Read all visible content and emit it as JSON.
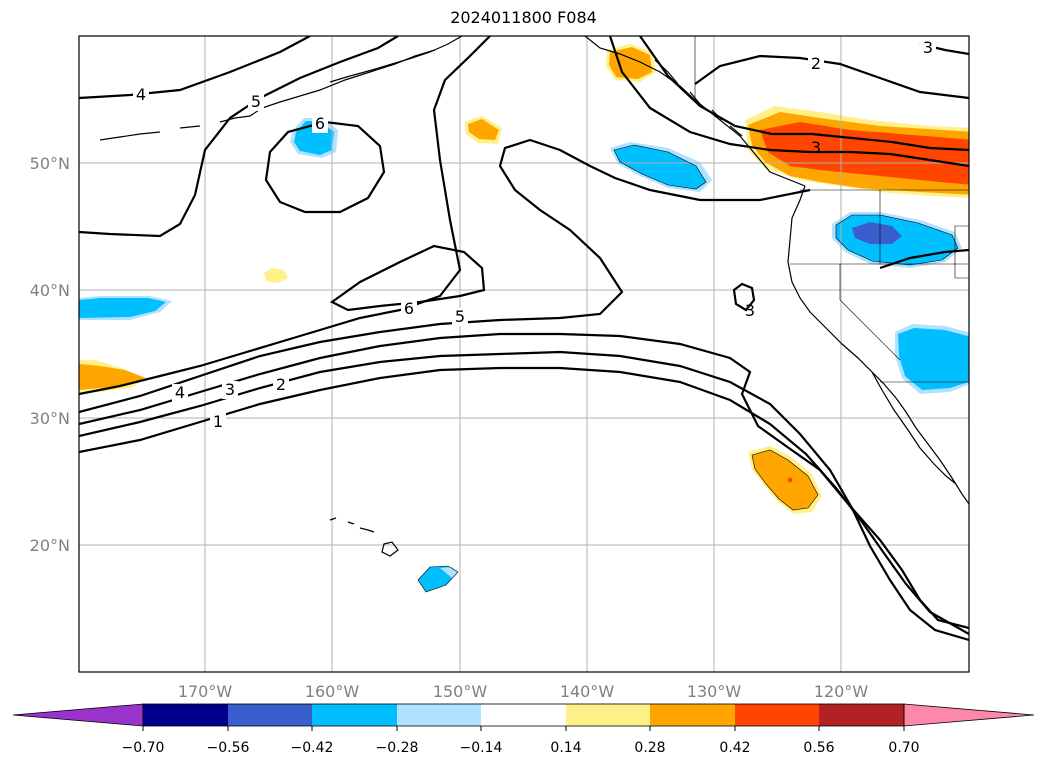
{
  "title": "2024011800 F084",
  "latitude_labels": [
    "50°N",
    "40°N",
    "30°N",
    "20°N"
  ],
  "longitude_labels": [
    "170°W",
    "160°W",
    "150°W",
    "140°W",
    "130°W",
    "120°W"
  ],
  "contour_labels": [
    "4",
    "5",
    "6",
    "6",
    "5",
    "4",
    "3",
    "2",
    "1",
    "2",
    "3",
    "3",
    "3"
  ],
  "colorbar": {
    "ticks": [
      "−0.70",
      "−0.56",
      "−0.42",
      "−0.28",
      "−0.14",
      "0.14",
      "0.28",
      "0.42",
      "0.56",
      "0.70"
    ],
    "colors": [
      "#9933cc",
      "#00008b",
      "#3a5fcd",
      "#00bfff",
      "#b0e2ff",
      "#ffffff",
      "#fff08a",
      "#ffa500",
      "#ff4500",
      "#b22222",
      "#ff88aa"
    ]
  },
  "colors": {
    "shade_light_blue": "#b0e2ff",
    "shade_blue": "#00bfff",
    "shade_dark_blue": "#3a5fcd",
    "shade_yellow": "#fff08a",
    "shade_orange": "#ffa500",
    "shade_red_orange": "#ff4500",
    "grid": "#b0b0b0",
    "axis_label": "#808080"
  }
}
